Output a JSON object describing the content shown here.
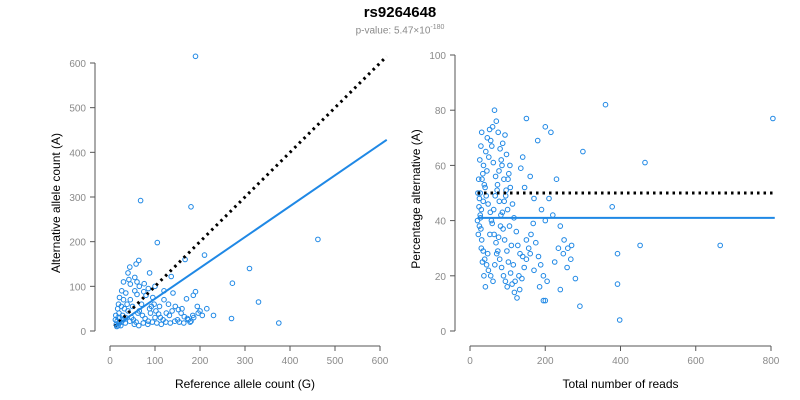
{
  "title": "rs9264648",
  "subtitle_prefix": "p-value: 5.47×10",
  "subtitle_exp": "-180",
  "colors": {
    "points": "#1f88e5",
    "fit": "#1f88e5",
    "reference": "#000000",
    "axis": "#555555",
    "ticks": "#8a8a8a"
  },
  "chart_data": [
    {
      "type": "scatter",
      "name": "allele-counts",
      "xlabel": "Reference allele count (G)",
      "ylabel": "Alternative allele count (A)",
      "xlim": [
        0,
        620
      ],
      "ylim": [
        0,
        620
      ],
      "xticks": [
        0,
        100,
        200,
        300,
        400,
        500,
        600
      ],
      "yticks": [
        0,
        100,
        200,
        300,
        400,
        500,
        600
      ],
      "fit_line": {
        "x": [
          10,
          615
        ],
        "y": [
          10,
          428
        ],
        "style": "solid"
      },
      "reference_line": {
        "x": [
          10,
          615
        ],
        "y": [
          10,
          615
        ],
        "style": "dotted"
      },
      "points": [
        [
          190,
          615
        ],
        [
          68,
          292
        ],
        [
          180,
          278
        ],
        [
          105,
          198
        ],
        [
          462,
          205
        ],
        [
          64,
          158
        ],
        [
          58,
          150
        ],
        [
          44,
          143
        ],
        [
          136,
          122
        ],
        [
          167,
          160
        ],
        [
          210,
          170
        ],
        [
          42,
          115
        ],
        [
          76,
          106
        ],
        [
          272,
          107
        ],
        [
          310,
          140
        ],
        [
          330,
          65
        ],
        [
          375,
          18
        ],
        [
          270,
          28
        ],
        [
          100,
          30
        ],
        [
          150,
          25
        ],
        [
          180,
          22
        ],
        [
          200,
          45
        ],
        [
          230,
          35
        ],
        [
          55,
          90
        ],
        [
          60,
          82
        ],
        [
          80,
          80
        ],
        [
          95,
          75
        ],
        [
          120,
          70
        ],
        [
          130,
          60
        ],
        [
          160,
          50
        ],
        [
          170,
          72
        ],
        [
          185,
          80
        ],
        [
          190,
          88
        ],
        [
          140,
          85
        ],
        [
          110,
          55
        ],
        [
          90,
          40
        ],
        [
          70,
          60
        ],
        [
          50,
          55
        ],
        [
          40,
          45
        ],
        [
          35,
          30
        ],
        [
          30,
          25
        ],
        [
          25,
          20
        ],
        [
          20,
          18
        ],
        [
          18,
          12
        ],
        [
          15,
          10
        ],
        [
          22,
          30
        ],
        [
          28,
          35
        ],
        [
          32,
          50
        ],
        [
          38,
          60
        ],
        [
          45,
          70
        ],
        [
          48,
          30
        ],
        [
          52,
          25
        ],
        [
          58,
          20
        ],
        [
          62,
          40
        ],
        [
          65,
          45
        ],
        [
          72,
          35
        ],
        [
          78,
          28
        ],
        [
          85,
          22
        ],
        [
          88,
          50
        ],
        [
          92,
          55
        ],
        [
          98,
          60
        ],
        [
          102,
          45
        ],
        [
          108,
          38
        ],
        [
          112,
          30
        ],
        [
          118,
          25
        ],
        [
          125,
          40
        ],
        [
          132,
          35
        ],
        [
          138,
          45
        ],
        [
          145,
          55
        ],
        [
          152,
          48
        ],
        [
          158,
          40
        ],
        [
          165,
          32
        ],
        [
          172,
          28
        ],
        [
          178,
          20
        ],
        [
          186,
          30
        ],
        [
          196,
          40
        ],
        [
          205,
          35
        ],
        [
          215,
          50
        ],
        [
          120,
          90
        ],
        [
          100,
          100
        ],
        [
          85,
          95
        ],
        [
          75,
          88
        ],
        [
          65,
          100
        ],
        [
          55,
          120
        ],
        [
          45,
          105
        ],
        [
          35,
          85
        ],
        [
          30,
          70
        ],
        [
          25,
          55
        ],
        [
          20,
          40
        ],
        [
          18,
          30
        ],
        [
          16,
          22
        ],
        [
          14,
          15
        ],
        [
          24,
          12
        ],
        [
          34,
          18
        ],
        [
          44,
          22
        ],
        [
          54,
          15
        ],
        [
          64,
          12
        ],
        [
          74,
          18
        ],
        [
          84,
          15
        ],
        [
          94,
          20
        ],
        [
          104,
          18
        ],
        [
          114,
          15
        ],
        [
          124,
          20
        ],
        [
          134,
          18
        ],
        [
          144,
          22
        ],
        [
          154,
          20
        ],
        [
          164,
          18
        ],
        [
          174,
          25
        ],
        [
          184,
          35
        ],
        [
          194,
          55
        ],
        [
          60,
          110
        ],
        [
          88,
          130
        ],
        [
          40,
          130
        ],
        [
          30,
          110
        ],
        [
          26,
          90
        ],
        [
          21,
          75
        ],
        [
          19,
          60
        ],
        [
          17,
          50
        ],
        [
          13,
          35
        ],
        [
          12,
          25
        ]
      ]
    },
    {
      "type": "scatter",
      "name": "percentage-alternative",
      "xlabel": "Total number of reads",
      "ylabel": "Percentage alternative (A)",
      "xlim": [
        0,
        810
      ],
      "ylim": [
        0,
        100
      ],
      "xticks": [
        0,
        200,
        400,
        600,
        800
      ],
      "yticks": [
        0,
        20,
        40,
        60,
        80,
        100
      ],
      "fit_line": {
        "x": [
          20,
          810
        ],
        "y": [
          41,
          41
        ],
        "style": "solid"
      },
      "reference_line": {
        "x": [
          20,
          810
        ],
        "y": [
          50,
          50
        ],
        "style": "dotted"
      },
      "points": [
        [
          805,
          77
        ],
        [
          360,
          82
        ],
        [
          465,
          61
        ],
        [
          665,
          31
        ],
        [
          452,
          31
        ],
        [
          392,
          28
        ],
        [
          392,
          17
        ],
        [
          398,
          4
        ],
        [
          292,
          9
        ],
        [
          300,
          65
        ],
        [
          378,
          45
        ],
        [
          230,
          55
        ],
        [
          215,
          72
        ],
        [
          200,
          74
        ],
        [
          180,
          69
        ],
        [
          150,
          77
        ],
        [
          140,
          63
        ],
        [
          135,
          59
        ],
        [
          145,
          52
        ],
        [
          160,
          56
        ],
        [
          170,
          48
        ],
        [
          190,
          44
        ],
        [
          200,
          40
        ],
        [
          210,
          48
        ],
        [
          220,
          42
        ],
        [
          240,
          38
        ],
        [
          250,
          33
        ],
        [
          260,
          30
        ],
        [
          270,
          31
        ],
        [
          280,
          19
        ],
        [
          240,
          15
        ],
        [
          200,
          11
        ],
        [
          195,
          11
        ],
        [
          185,
          16
        ],
        [
          170,
          22
        ],
        [
          160,
          28
        ],
        [
          150,
          33
        ],
        [
          140,
          27
        ],
        [
          130,
          20
        ],
        [
          120,
          18
        ],
        [
          115,
          24
        ],
        [
          110,
          31
        ],
        [
          105,
          38
        ],
        [
          100,
          44
        ],
        [
          95,
          49
        ],
        [
          90,
          55
        ],
        [
          85,
          60
        ],
        [
          80,
          66
        ],
        [
          75,
          72
        ],
        [
          70,
          76
        ],
        [
          65,
          80
        ],
        [
          60,
          74
        ],
        [
          55,
          69
        ],
        [
          50,
          63
        ],
        [
          45,
          58
        ],
        [
          40,
          52
        ],
        [
          35,
          47
        ],
        [
          30,
          44
        ],
        [
          28,
          41
        ],
        [
          25,
          38
        ],
        [
          22,
          35
        ],
        [
          20,
          40
        ],
        [
          24,
          45
        ],
        [
          27,
          50
        ],
        [
          32,
          55
        ],
        [
          36,
          60
        ],
        [
          42,
          65
        ],
        [
          46,
          70
        ],
        [
          52,
          73
        ],
        [
          58,
          67
        ],
        [
          62,
          61
        ],
        [
          68,
          56
        ],
        [
          72,
          51
        ],
        [
          78,
          47
        ],
        [
          82,
          42
        ],
        [
          88,
          37
        ],
        [
          92,
          33
        ],
        [
          98,
          29
        ],
        [
          102,
          25
        ],
        [
          108,
          21
        ],
        [
          112,
          17
        ],
        [
          118,
          14
        ],
        [
          125,
          12
        ],
        [
          132,
          15
        ],
        [
          138,
          19
        ],
        [
          144,
          23
        ],
        [
          150,
          26
        ],
        [
          156,
          30
        ],
        [
          162,
          35
        ],
        [
          168,
          39
        ],
        [
          175,
          32
        ],
        [
          182,
          27
        ],
        [
          188,
          24
        ],
        [
          195,
          20
        ],
        [
          205,
          18
        ],
        [
          225,
          25
        ],
        [
          235,
          30
        ],
        [
          248,
          28
        ],
        [
          258,
          23
        ],
        [
          268,
          26
        ],
        [
          30,
          30
        ],
        [
          33,
          25
        ],
        [
          37,
          20
        ],
        [
          41,
          16
        ],
        [
          47,
          28
        ],
        [
          53,
          35
        ],
        [
          57,
          40
        ],
        [
          63,
          44
        ],
        [
          67,
          49
        ],
        [
          73,
          53
        ],
        [
          77,
          58
        ],
        [
          83,
          62
        ],
        [
          87,
          68
        ],
        [
          93,
          71
        ],
        [
          97,
          64
        ],
        [
          103,
          57
        ],
        [
          107,
          52
        ],
        [
          113,
          46
        ],
        [
          117,
          41
        ],
        [
          123,
          36
        ],
        [
          127,
          31
        ],
        [
          133,
          28
        ],
        [
          26,
          62
        ],
        [
          29,
          67
        ],
        [
          31,
          72
        ],
        [
          34,
          57
        ],
        [
          38,
          53
        ],
        [
          43,
          49
        ],
        [
          48,
          46
        ],
        [
          54,
          43
        ],
        [
          59,
          39
        ],
        [
          64,
          35
        ],
        [
          69,
          32
        ],
        [
          74,
          29
        ],
        [
          79,
          26
        ],
        [
          84,
          23
        ],
        [
          89,
          20
        ],
        [
          94,
          18
        ],
        [
          99,
          16
        ],
        [
          21,
          50
        ],
        [
          23,
          55
        ],
        [
          25,
          48
        ],
        [
          27,
          42
        ],
        [
          29,
          37
        ],
        [
          31,
          33
        ],
        [
          35,
          29
        ],
        [
          39,
          26
        ],
        [
          44,
          24
        ],
        [
          49,
          22
        ],
        [
          55,
          20
        ],
        [
          61,
          18
        ],
        [
          66,
          24
        ],
        [
          71,
          28
        ],
        [
          76,
          34
        ],
        [
          81,
          38
        ],
        [
          86,
          43
        ],
        [
          91,
          47
        ],
        [
          96,
          51
        ],
        [
          101,
          55
        ],
        [
          106,
          60
        ]
      ]
    }
  ]
}
